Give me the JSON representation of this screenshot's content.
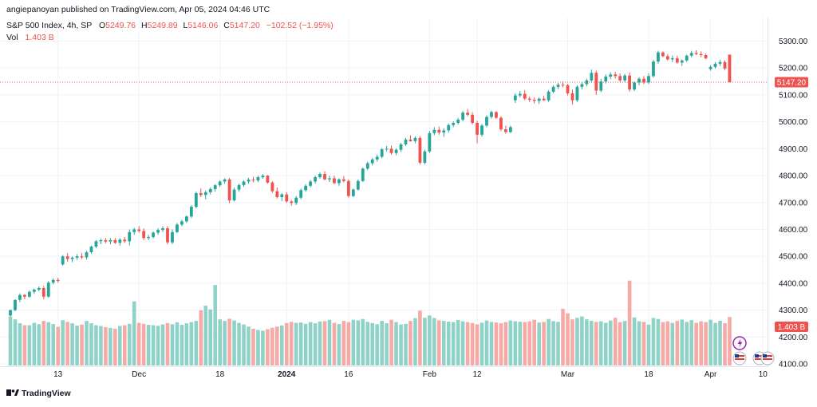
{
  "header": {
    "published": "angiepanoyan published on TradingView.com, Apr 05, 2024 04:46 UTC"
  },
  "legend": {
    "symbol": "S&P 500 Index, 4h, SP",
    "open_label": "O",
    "open_value": "5249.76",
    "high_label": "H",
    "high_value": "5249.89",
    "low_label": "L",
    "low_value": "5146.06",
    "close_label": "C",
    "close_value": "5147.20",
    "change": "−102.52 (−1.95%)",
    "vol_label": "Vol",
    "vol_value": "1.403 B"
  },
  "price_badge": "5147.20",
  "volume_badge": "1.403 B",
  "logo": {
    "text": "TradingView"
  },
  "colors": {
    "up": "#26a69a",
    "down": "#ef5350",
    "vol_up": "#8fd3c8",
    "vol_down": "#f7a9a6",
    "text": "#131722",
    "muted": "#787b86",
    "grid": "#f0f3fa"
  },
  "chart_data": {
    "type": "candlestick",
    "ylim": [
      4100,
      5350
    ],
    "y_ticks": [
      4100,
      4200,
      4300,
      4400,
      4500,
      4600,
      4700,
      4800,
      4900,
      5000,
      5100,
      5200,
      5300
    ],
    "y_tick_labels": [
      "4100.00",
      "4200.00",
      "4300.00",
      "4400.00",
      "4500.00",
      "4600.00",
      "4700.00",
      "4800.00",
      "4900.00",
      "5000.00",
      "5100.00",
      "5200.00",
      "5300.00"
    ],
    "x_ticks": [
      {
        "label": "13",
        "i": 10,
        "bold": false
      },
      {
        "label": "Dec",
        "i": 27,
        "bold": false
      },
      {
        "label": "18",
        "i": 44,
        "bold": false
      },
      {
        "label": "2024",
        "i": 58,
        "bold": true
      },
      {
        "label": "16",
        "i": 71,
        "bold": false
      },
      {
        "label": "Feb",
        "i": 88,
        "bold": false
      },
      {
        "label": "12",
        "i": 98,
        "bold": false
      },
      {
        "label": "Mar",
        "i": 117,
        "bold": false
      },
      {
        "label": "18",
        "i": 134,
        "bold": false
      },
      {
        "label": "Apr",
        "i": 147,
        "bold": false
      },
      {
        "label": "10",
        "i": 158,
        "bold": false
      }
    ],
    "last_close": 5147.2,
    "candles": [
      [
        4280,
        4302,
        4275,
        4300,
        250
      ],
      [
        4300,
        4340,
        4296,
        4338,
        236
      ],
      [
        4338,
        4362,
        4330,
        4356,
        216
      ],
      [
        4356,
        4360,
        4340,
        4350,
        206
      ],
      [
        4350,
        4372,
        4346,
        4368,
        206
      ],
      [
        4368,
        4380,
        4360,
        4376,
        218
      ],
      [
        4376,
        4388,
        4370,
        4382,
        211
      ],
      [
        4382,
        4390,
        4340,
        4350,
        228
      ],
      [
        4350,
        4408,
        4346,
        4402,
        222
      ],
      [
        4402,
        4418,
        4396,
        4412,
        212
      ],
      [
        4412,
        4420,
        4402,
        4408,
        198
      ],
      [
        4470,
        4505,
        4465,
        4500,
        232
      ],
      [
        4500,
        4512,
        4480,
        4490,
        223
      ],
      [
        4490,
        4500,
        4478,
        4495,
        216
      ],
      [
        4495,
        4508,
        4487,
        4500,
        204
      ],
      [
        4500,
        4512,
        4490,
        4496,
        209
      ],
      [
        4496,
        4520,
        4488,
        4515,
        228
      ],
      [
        4515,
        4540,
        4510,
        4536,
        216
      ],
      [
        4536,
        4560,
        4530,
        4556,
        206
      ],
      [
        4556,
        4566,
        4545,
        4560,
        202
      ],
      [
        4560,
        4568,
        4548,
        4555,
        196
      ],
      [
        4555,
        4568,
        4545,
        4560,
        192
      ],
      [
        4560,
        4568,
        4546,
        4550,
        188
      ],
      [
        4550,
        4568,
        4540,
        4562,
        202
      ],
      [
        4562,
        4572,
        4550,
        4556,
        206
      ],
      [
        4556,
        4600,
        4540,
        4590,
        213
      ],
      [
        4590,
        4606,
        4580,
        4600,
        328
      ],
      [
        4600,
        4612,
        4588,
        4594,
        218
      ],
      [
        4594,
        4604,
        4560,
        4568,
        213
      ],
      [
        4568,
        4580,
        4560,
        4572,
        208
      ],
      [
        4572,
        4592,
        4566,
        4588,
        206
      ],
      [
        4588,
        4604,
        4580,
        4598,
        203
      ],
      [
        4598,
        4612,
        4590,
        4604,
        210
      ],
      [
        4604,
        4612,
        4544,
        4552,
        217
      ],
      [
        4552,
        4600,
        4545,
        4590,
        211
      ],
      [
        4590,
        4624,
        4586,
        4618,
        221
      ],
      [
        4618,
        4636,
        4612,
        4630,
        208
      ],
      [
        4630,
        4652,
        4624,
        4648,
        216
      ],
      [
        4648,
        4690,
        4642,
        4684,
        222
      ],
      [
        4684,
        4740,
        4678,
        4735,
        228
      ],
      [
        4735,
        4752,
        4720,
        4728,
        282
      ],
      [
        4728,
        4745,
        4712,
        4738,
        306
      ],
      [
        4738,
        4756,
        4730,
        4750,
        287
      ],
      [
        4750,
        4768,
        4740,
        4764,
        412
      ],
      [
        4764,
        4782,
        4758,
        4778,
        236
      ],
      [
        4778,
        4790,
        4770,
        4786,
        228
      ],
      [
        4786,
        4792,
        4698,
        4708,
        239
      ],
      [
        4708,
        4756,
        4704,
        4748,
        230
      ],
      [
        4748,
        4770,
        4740,
        4765,
        218
      ],
      [
        4765,
        4782,
        4758,
        4778,
        210
      ],
      [
        4778,
        4792,
        4770,
        4785,
        199
      ],
      [
        4785,
        4796,
        4775,
        4782,
        188
      ],
      [
        4782,
        4800,
        4776,
        4794,
        182
      ],
      [
        4794,
        4806,
        4788,
        4800,
        178
      ],
      [
        4800,
        4802,
        4770,
        4774,
        186
      ],
      [
        4774,
        4780,
        4736,
        4742,
        193
      ],
      [
        4742,
        4756,
        4715,
        4720,
        199
      ],
      [
        4720,
        4735,
        4705,
        4730,
        205
      ],
      [
        4730,
        4738,
        4698,
        4704,
        217
      ],
      [
        4704,
        4710,
        4688,
        4698,
        223
      ],
      [
        4698,
        4724,
        4690,
        4718,
        218
      ],
      [
        4718,
        4752,
        4712,
        4746,
        220
      ],
      [
        4746,
        4768,
        4740,
        4762,
        213
      ],
      [
        4762,
        4784,
        4756,
        4778,
        222
      ],
      [
        4778,
        4800,
        4770,
        4794,
        216
      ],
      [
        4794,
        4812,
        4788,
        4806,
        225
      ],
      [
        4806,
        4816,
        4782,
        4786,
        227
      ],
      [
        4786,
        4800,
        4776,
        4790,
        234
      ],
      [
        4790,
        4800,
        4768,
        4772,
        218
      ],
      [
        4772,
        4790,
        4762,
        4786,
        212
      ],
      [
        4786,
        4798,
        4774,
        4780,
        228
      ],
      [
        4780,
        4786,
        4718,
        4724,
        222
      ],
      [
        4724,
        4752,
        4720,
        4748,
        234
      ],
      [
        4748,
        4786,
        4744,
        4780,
        231
      ],
      [
        4780,
        4830,
        4776,
        4826,
        238
      ],
      [
        4826,
        4852,
        4820,
        4846,
        223
      ],
      [
        4846,
        4866,
        4838,
        4860,
        217
      ],
      [
        4860,
        4878,
        4852,
        4870,
        211
      ],
      [
        4870,
        4902,
        4864,
        4898,
        228
      ],
      [
        4898,
        4910,
        4890,
        4900,
        216
      ],
      [
        4900,
        4912,
        4878,
        4884,
        234
      ],
      [
        4884,
        4902,
        4876,
        4896,
        222
      ],
      [
        4896,
        4922,
        4888,
        4916,
        210
      ],
      [
        4916,
        4940,
        4910,
        4934,
        213
      ],
      [
        4934,
        4950,
        4926,
        4928,
        228
      ],
      [
        4928,
        4946,
        4920,
        4940,
        242
      ],
      [
        4940,
        4946,
        4842,
        4848,
        281
      ],
      [
        4848,
        4896,
        4842,
        4890,
        244
      ],
      [
        4890,
        4966,
        4884,
        4958,
        256
      ],
      [
        4958,
        4980,
        4950,
        4970,
        243
      ],
      [
        4970,
        4982,
        4952,
        4960,
        231
      ],
      [
        4960,
        4976,
        4944,
        4968,
        228
      ],
      [
        4968,
        4994,
        4960,
        4988,
        224
      ],
      [
        4988,
        5002,
        4980,
        4996,
        222
      ],
      [
        4996,
        5014,
        4990,
        5008,
        233
      ],
      [
        5008,
        5040,
        5002,
        5034,
        226
      ],
      [
        5034,
        5048,
        5020,
        5026,
        222
      ],
      [
        5026,
        5036,
        4990,
        4996,
        217
      ],
      [
        4996,
        5004,
        4920,
        4952,
        211
      ],
      [
        4952,
        4992,
        4945,
        4986,
        219
      ],
      [
        4986,
        5024,
        4980,
        5018,
        230
      ],
      [
        5018,
        5042,
        5012,
        5036,
        223
      ],
      [
        5036,
        5040,
        5010,
        5015,
        220
      ],
      [
        5015,
        5020,
        4965,
        4972,
        216
      ],
      [
        4972,
        4985,
        4956,
        4962,
        222
      ],
      [
        4962,
        4986,
        4958,
        4980,
        230
      ],
      [
        5080,
        5106,
        5070,
        5098,
        226
      ],
      [
        5098,
        5115,
        5090,
        5104,
        224
      ],
      [
        5104,
        5118,
        5080,
        5086,
        222
      ],
      [
        5086,
        5094,
        5074,
        5082,
        226
      ],
      [
        5082,
        5090,
        5068,
        5078,
        234
      ],
      [
        5078,
        5090,
        5066,
        5086,
        220
      ],
      [
        5086,
        5096,
        5078,
        5080,
        223
      ],
      [
        5080,
        5118,
        5074,
        5112,
        238
      ],
      [
        5112,
        5136,
        5106,
        5130,
        227
      ],
      [
        5130,
        5144,
        5122,
        5138,
        223
      ],
      [
        5138,
        5150,
        5128,
        5136,
        290
      ],
      [
        5136,
        5140,
        5098,
        5106,
        267
      ],
      [
        5106,
        5120,
        5064,
        5080,
        236
      ],
      [
        5080,
        5136,
        5074,
        5130,
        244
      ],
      [
        5130,
        5148,
        5120,
        5140,
        251
      ],
      [
        5140,
        5160,
        5132,
        5154,
        236
      ],
      [
        5154,
        5194,
        5146,
        5182,
        229
      ],
      [
        5182,
        5190,
        5100,
        5116,
        223
      ],
      [
        5116,
        5160,
        5110,
        5150,
        226
      ],
      [
        5150,
        5176,
        5142,
        5168,
        218
      ],
      [
        5168,
        5184,
        5158,
        5176,
        230
      ],
      [
        5176,
        5186,
        5160,
        5170,
        244
      ],
      [
        5170,
        5180,
        5148,
        5154,
        222
      ],
      [
        5154,
        5178,
        5146,
        5172,
        228
      ],
      [
        5172,
        5184,
        5112,
        5120,
        434
      ],
      [
        5120,
        5150,
        5114,
        5146,
        246
      ],
      [
        5146,
        5166,
        5136,
        5160,
        226
      ],
      [
        5160,
        5170,
        5140,
        5146,
        223
      ],
      [
        5146,
        5180,
        5140,
        5170,
        209
      ],
      [
        5170,
        5230,
        5164,
        5224,
        243
      ],
      [
        5224,
        5264,
        5216,
        5258,
        238
      ],
      [
        5258,
        5262,
        5240,
        5244,
        222
      ],
      [
        5244,
        5252,
        5228,
        5232,
        226
      ],
      [
        5232,
        5246,
        5222,
        5236,
        218
      ],
      [
        5236,
        5246,
        5216,
        5220,
        228
      ],
      [
        5220,
        5232,
        5208,
        5228,
        235
      ],
      [
        5228,
        5250,
        5222,
        5246,
        223
      ],
      [
        5246,
        5264,
        5240,
        5256,
        232
      ],
      [
        5256,
        5266,
        5248,
        5252,
        218
      ],
      [
        5252,
        5262,
        5240,
        5248,
        226
      ],
      [
        5248,
        5254,
        5232,
        5236,
        222
      ],
      [
        5196,
        5210,
        5190,
        5204,
        234
      ],
      [
        5204,
        5222,
        5198,
        5216,
        218
      ],
      [
        5216,
        5230,
        5208,
        5222,
        229
      ],
      [
        5222,
        5228,
        5192,
        5198,
        216
      ],
      [
        5249.76,
        5249.89,
        5146.06,
        5147.2,
        248
      ]
    ]
  }
}
